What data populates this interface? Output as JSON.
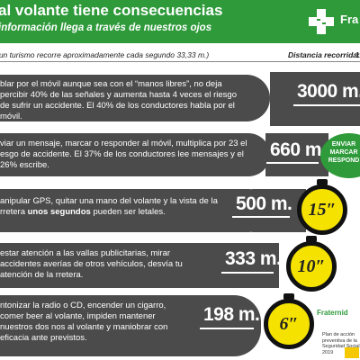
{
  "header": {
    "title": "al volante tiene consecuencias",
    "subtitle": "información llega a través de nuestros ojos",
    "brand": "Fra"
  },
  "info": {
    "note": "(un turismo recorre aproximadamente cada segundo 33,33 m.)",
    "distance_label": "Distancia recorrida:",
    "distance_tick": "1"
  },
  "rows": [
    {
      "text_html": "blar por el móvil aunque sea con el “manos libres”, no deja percibir 40% de las señales y aumenta hasta 4 veces el riesgo de sufrir un accidente. El 40% de los conductores habla por el móvil.",
      "distance": "3000 m."
    },
    {
      "text_html": "viar un mensaje, marcar o responder al móvil, multiplica por 23 el esgo de accidente. El 37% de los conductores lee mensajes y el 26% escribe.",
      "distance": "660 m."
    },
    {
      "text_pre": "anipular GPS, quitar una mano del volante y la vista de la rretera ",
      "text_bold": "unos segundos",
      "text_post": " pueden ser letales.",
      "distance": "500 m.",
      "time": "15″"
    },
    {
      "text_html": "estar atención a las vallas publicitarias, mirar accidentes averías de otros vehículos, desvía tu atención de la rretera.",
      "distance": "333 m.",
      "time": "10″"
    },
    {
      "text_html": "ntonizar la radio o CD, encender un cigarro, comer beer al volante, impiden mantener nuestros dos nos al volante y maniobrar con eficacia ante previstos.",
      "distance": "198 m.",
      "time": "6″"
    }
  ],
  "callout": {
    "text": "ENVIAR MARCAR RESPOND"
  },
  "footer": {
    "brand": "Fraternid",
    "sub": "Plan de acción preventiva de la Seguridad Social 2019"
  },
  "colors": {
    "green": "#2e9a3a",
    "dark_gray": "#4b4b4b",
    "yellow": "#f5e200"
  }
}
